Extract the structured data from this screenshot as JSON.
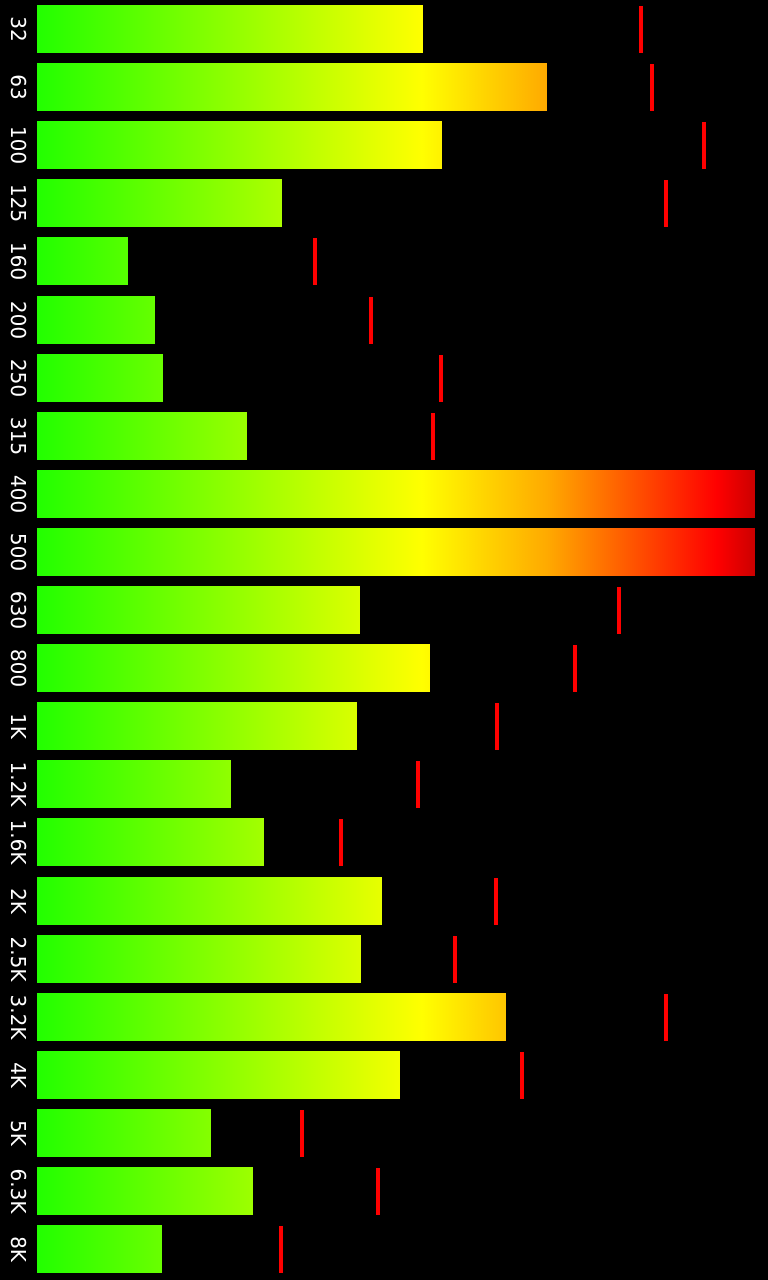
{
  "app": {
    "view": "spectrum-analyzer",
    "orientation": "rotated-90",
    "background_color": "#000000",
    "label_color": "#ffffff",
    "peak_color": "#ff0000",
    "bar_gradient": [
      "#22ff00",
      "#88ff00",
      "#ffff00",
      "#ffaa00",
      "#ff0000",
      "#cc0000"
    ]
  },
  "chart_data": {
    "type": "bar",
    "orientation": "horizontal",
    "categories": [
      "32",
      "63",
      "100",
      "125",
      "160",
      "200",
      "250",
      "315",
      "400",
      "500",
      "630",
      "800",
      "1K",
      "1.2K",
      "1.6K",
      "2K",
      "2.5K",
      "3.2K",
      "4K",
      "5K",
      "6.3K",
      "8K"
    ],
    "values": [
      0.537,
      0.711,
      0.564,
      0.341,
      0.127,
      0.165,
      0.176,
      0.292,
      1.0,
      1.0,
      0.45,
      0.548,
      0.446,
      0.27,
      0.316,
      0.481,
      0.451,
      0.653,
      0.506,
      0.243,
      0.301,
      0.174
    ],
    "peaks": [
      0.841,
      0.857,
      0.929,
      0.876,
      0.387,
      0.465,
      0.562,
      0.551,
      1.0,
      1.0,
      0.811,
      0.749,
      0.641,
      0.531,
      0.424,
      0.639,
      0.582,
      0.876,
      0.675,
      0.369,
      0.475,
      0.34
    ],
    "ylim": [
      0,
      1
    ],
    "grid": false,
    "legend": "none"
  }
}
